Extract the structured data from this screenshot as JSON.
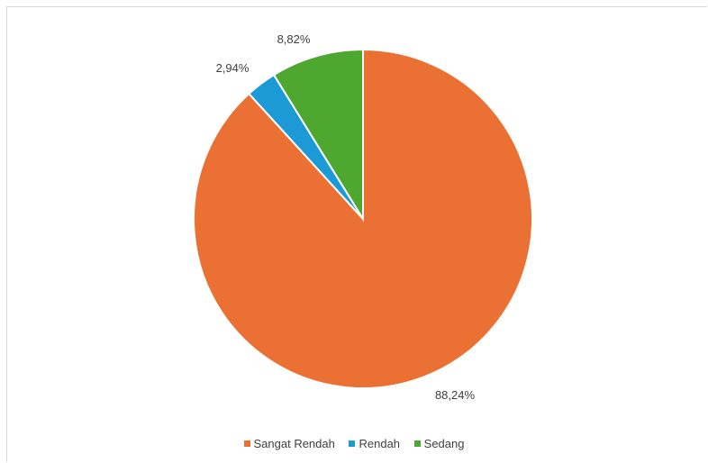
{
  "chart_data": {
    "type": "pie",
    "title": "",
    "slices": [
      {
        "label": "Sangat Rendah",
        "value": 88.24,
        "data_label": "88,24%",
        "color": "#ea7133"
      },
      {
        "label": "Rendah",
        "value": 2.94,
        "data_label": "2,94%",
        "color": "#1b9ad6"
      },
      {
        "label": "Sedang",
        "value": 8.82,
        "data_label": "8,82%",
        "color": "#4ea72e"
      }
    ],
    "start_angle_deg": 0,
    "direction": "clockwise",
    "legend_position": "bottom"
  }
}
